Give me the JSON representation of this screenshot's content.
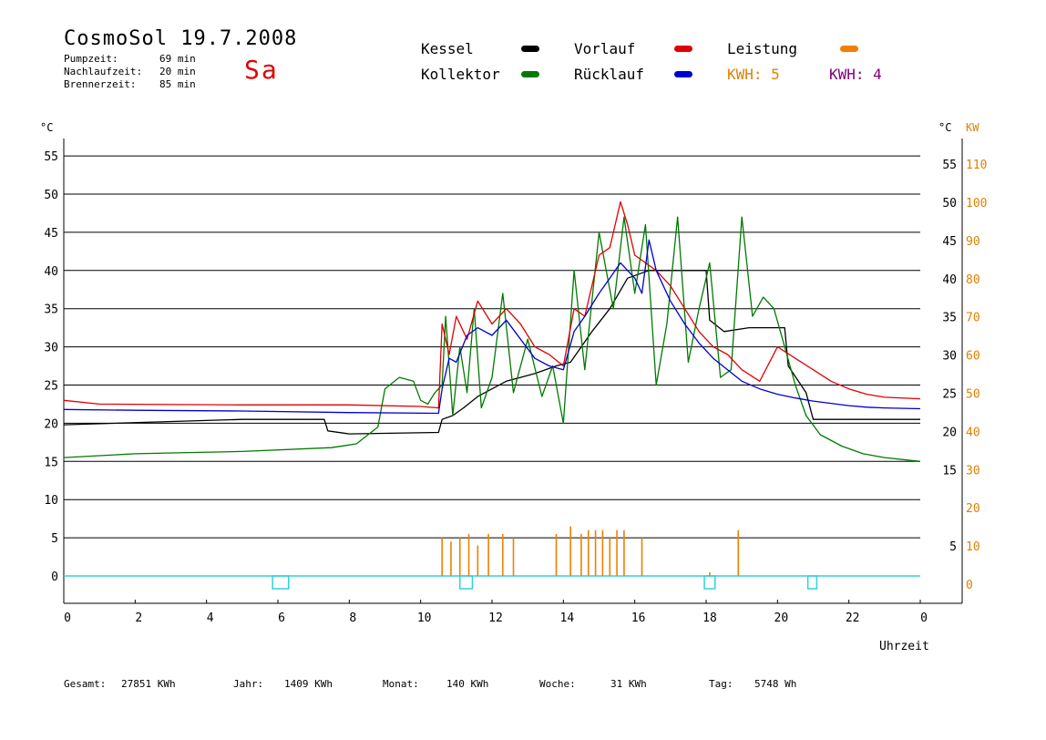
{
  "header": {
    "title": "CosmoSol 19.7.2008",
    "day": "Sa",
    "pump_label": "Pumpzeit:",
    "pump_value": "69 min",
    "afterrun_label": "Nachlaufzeit:",
    "afterrun_value": "20 min",
    "burner_label": "Brennerzeit:",
    "burner_value": "85 min"
  },
  "legend": {
    "kessel": "Kessel",
    "kollektor": "Kollektor",
    "vorlauf": "Vorlauf",
    "ruecklauf": "Rücklauf",
    "leistung": "Leistung",
    "kwh1": "KWH: 5",
    "kwh2": "KWH: 4"
  },
  "axes": {
    "left_unit": "°C",
    "right_unit": "°C",
    "right_unit2": "KW",
    "xlabel": "Uhrzeit"
  },
  "stats": {
    "gesamt_label": "Gesamt:",
    "gesamt_value": "27851 KWh",
    "jahr_label": "Jahr:",
    "jahr_value": "1409 KWh",
    "monat_label": "Monat:",
    "monat_value": "140 KWh",
    "woche_label": "Woche:",
    "woche_value": "31 KWh",
    "tag_label": "Tag:",
    "tag_value": "5748 Wh"
  },
  "colors": {
    "kessel": "#000000",
    "kollektor": "#007a00",
    "vorlauf": "#e00000",
    "ruecklauf": "#0000d0",
    "leistung": "#f08000",
    "kwh1": "#e08000",
    "kwh2": "#800080",
    "pump": "#30d0e0"
  },
  "chart_data": {
    "type": "line",
    "xlim": [
      0,
      24
    ],
    "ylim": [
      -3,
      58
    ],
    "y2lim": [
      -6,
      116
    ],
    "x_ticks": [
      "0",
      "2",
      "4",
      "6",
      "8",
      "10",
      "12",
      "14",
      "16",
      "18",
      "20",
      "22",
      "0"
    ],
    "y_ticks": [
      0,
      5,
      10,
      15,
      20,
      25,
      30,
      35,
      40,
      45,
      50,
      55
    ],
    "y_ticks_right": [
      5,
      15,
      20,
      25,
      30,
      35,
      40,
      45,
      50,
      55
    ],
    "y2_ticks": [
      0,
      10,
      20,
      30,
      40,
      50,
      60,
      70,
      80,
      90,
      100,
      110
    ],
    "grid": "horizontal",
    "series": [
      {
        "name": "Kessel",
        "color": "#000000",
        "x": [
          0,
          5.0,
          7.3,
          7.4,
          8.0,
          10.5,
          10.6,
          10.9,
          11.2,
          11.6,
          12.0,
          12.4,
          12.8,
          13.2,
          13.8,
          14.2,
          14.8,
          15.3,
          15.8,
          16.4,
          16.8,
          18.0,
          18.1,
          18.5,
          19.2,
          20.2,
          20.3,
          20.8,
          21.0,
          24.0
        ],
        "y": [
          19.8,
          20.5,
          20.5,
          19.0,
          18.6,
          18.8,
          20.5,
          21.0,
          22.0,
          23.5,
          24.5,
          25.5,
          26.0,
          26.5,
          27.5,
          28.0,
          32.0,
          35.0,
          39.0,
          40.0,
          40.0,
          40.0,
          33.5,
          32.0,
          32.5,
          32.5,
          27.5,
          24.0,
          20.5,
          20.5
        ]
      },
      {
        "name": "Kollektor",
        "color": "#007a00",
        "x": [
          0,
          2.0,
          5.0,
          7.5,
          8.2,
          8.8,
          9.0,
          9.4,
          9.8,
          10.0,
          10.2,
          10.4,
          10.6,
          10.7,
          10.9,
          11.1,
          11.3,
          11.5,
          11.7,
          12.0,
          12.3,
          12.6,
          13.0,
          13.4,
          13.7,
          14.0,
          14.3,
          14.6,
          15.0,
          15.4,
          15.7,
          16.0,
          16.3,
          16.6,
          16.9,
          17.2,
          17.5,
          17.8,
          18.1,
          18.4,
          18.7,
          19.0,
          19.3,
          19.6,
          19.9,
          20.2,
          20.5,
          20.8,
          21.2,
          21.8,
          22.4,
          23.0,
          24.0
        ],
        "y": [
          15.5,
          16.0,
          16.3,
          16.8,
          17.3,
          19.5,
          24.5,
          26.0,
          25.5,
          23.0,
          22.5,
          24.0,
          25.0,
          34.0,
          21.0,
          30.0,
          24.0,
          35.0,
          22.0,
          26.0,
          37.0,
          24.0,
          31.0,
          23.5,
          27.5,
          20.0,
          40.0,
          27.0,
          45.0,
          35.0,
          47.0,
          37.0,
          46.0,
          25.0,
          33.0,
          47.0,
          28.0,
          35.0,
          41.0,
          26.0,
          27.0,
          47.0,
          34.0,
          36.5,
          35.0,
          30.0,
          25.0,
          21.0,
          18.5,
          17.0,
          16.0,
          15.5,
          15.0
        ]
      },
      {
        "name": "Vorlauf",
        "color": "#e00000",
        "x": [
          0,
          1.0,
          5.0,
          8.0,
          10.0,
          10.5,
          10.6,
          10.8,
          11.0,
          11.3,
          11.6,
          12.0,
          12.4,
          12.8,
          13.2,
          13.6,
          14.0,
          14.3,
          14.6,
          15.0,
          15.3,
          15.6,
          15.8,
          16.0,
          16.3,
          16.6,
          17.0,
          17.4,
          17.8,
          18.2,
          18.6,
          19.0,
          19.5,
          20.0,
          20.5,
          21.0,
          21.5,
          22.0,
          22.5,
          23.0,
          24.0
        ],
        "y": [
          23.0,
          22.5,
          22.4,
          22.4,
          22.2,
          22.0,
          33.0,
          29.0,
          34.0,
          31.0,
          36.0,
          33.0,
          35.0,
          33.0,
          30.0,
          29.0,
          27.5,
          35.0,
          34.0,
          42.0,
          43.0,
          49.0,
          46.0,
          42.0,
          41.0,
          40.0,
          38.0,
          35.0,
          32.0,
          30.0,
          29.0,
          27.0,
          25.5,
          30.0,
          28.5,
          27.0,
          25.5,
          24.5,
          23.8,
          23.4,
          23.2
        ]
      },
      {
        "name": "Rücklauf",
        "color": "#0000d0",
        "x": [
          0,
          2.0,
          5.0,
          8.0,
          10.5,
          10.6,
          10.8,
          11.0,
          11.3,
          11.6,
          12.0,
          12.4,
          12.8,
          13.2,
          13.6,
          14.0,
          14.3,
          14.6,
          15.0,
          15.3,
          15.6,
          15.8,
          16.0,
          16.2,
          16.4,
          16.6,
          17.0,
          17.4,
          17.8,
          18.2,
          18.6,
          19.0,
          19.5,
          20.0,
          20.5,
          21.0,
          21.5,
          22.0,
          22.5,
          23.0,
          24.0
        ],
        "y": [
          21.8,
          21.7,
          21.6,
          21.4,
          21.3,
          24.5,
          28.5,
          28.0,
          31.5,
          32.5,
          31.5,
          33.5,
          31.0,
          28.5,
          27.5,
          27.0,
          32.0,
          34.0,
          37.0,
          39.0,
          41.0,
          40.0,
          39.0,
          37.0,
          44.0,
          40.0,
          36.0,
          33.0,
          30.5,
          28.5,
          27.0,
          25.5,
          24.5,
          23.8,
          23.3,
          22.9,
          22.6,
          22.3,
          22.1,
          22.0,
          21.9
        ]
      }
    ],
    "power_spikes": {
      "name": "Leistung",
      "color": "#f08000",
      "x": [
        10.6,
        10.85,
        11.1,
        11.35,
        11.6,
        11.9,
        12.3,
        12.6,
        13.8,
        14.2,
        14.5,
        14.7,
        14.9,
        15.1,
        15.3,
        15.5,
        15.7,
        16.2,
        18.1,
        18.9
      ],
      "kw": [
        10,
        9,
        10,
        11,
        8,
        11,
        11,
        10,
        11,
        13,
        11,
        12,
        12,
        12,
        10,
        12,
        12,
        10,
        1,
        12
      ]
    },
    "pump_on": {
      "name": "Pumpe",
      "color": "#30d0e0",
      "intervals": [
        [
          5.85,
          6.3
        ],
        [
          11.1,
          11.45
        ],
        [
          17.95,
          18.25
        ],
        [
          20.85,
          21.1
        ]
      ]
    }
  }
}
